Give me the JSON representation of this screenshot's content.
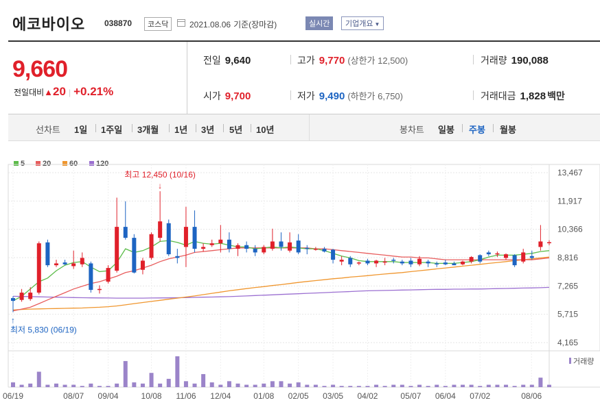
{
  "header": {
    "name": "에코바이오",
    "code": "038870",
    "market": "코스닥",
    "date": "2021.08.06",
    "basis": "기준(장마감)",
    "realtime_label": "실시간",
    "info_label": "기업개요"
  },
  "quote": {
    "price": "9,660",
    "change_label": "전일대비",
    "change_value": "20",
    "change_pct": "+0.21%",
    "prev_label": "전일",
    "prev_value": "9,640",
    "high_label": "고가",
    "high_value": "9,770",
    "upper_limit": "(상한가 12,500)",
    "volume_label": "거래량",
    "volume_value": "190,088",
    "open_label": "시가",
    "open_value": "9,700",
    "low_label": "저가",
    "low_value": "9,490",
    "lower_limit": "(하한가 6,750)",
    "amount_label": "거래대금",
    "amount_value": "1,828",
    "amount_unit": "백만"
  },
  "periods": {
    "line_label": "선차트",
    "line_items": [
      "1일",
      "1주일",
      "3개월",
      "1년",
      "3년",
      "5년",
      "10년"
    ],
    "candle_label": "봉차트",
    "candle_items": [
      "일봉",
      "주봉",
      "월봉"
    ],
    "candle_active": "주봉"
  },
  "colors": {
    "up": "#e0202a",
    "down": "#1d64c2",
    "ma5": "#5cbc4a",
    "ma20": "#e85c5c",
    "ma60": "#f0962e",
    "ma120": "#9b6fd1",
    "volume": "#9b84c9"
  },
  "chart_data": {
    "type": "candlestick",
    "interval": "weekly",
    "legend": [
      "5",
      "20",
      "60",
      "120"
    ],
    "y_ticks": [
      "13,467",
      "11,917",
      "10,366",
      "8,816",
      "7,265",
      "5,715",
      "4,165"
    ],
    "ylim": [
      4165,
      13467
    ],
    "x_ticks": [
      "06/19",
      "08/07",
      "09/04",
      "10/08",
      "11/06",
      "12/04",
      "01/08",
      "02/05",
      "03/05",
      "04/02",
      "05/07",
      "06/04",
      "07/02",
      "08/06"
    ],
    "annotations": {
      "high": "최고 12,450 (10/16)",
      "low": "최저 5,830 (06/19)"
    },
    "volume_label": "거래량",
    "candles": [
      {
        "o": 6600,
        "h": 6700,
        "l": 5830,
        "c": 6450
      },
      {
        "o": 6500,
        "h": 7100,
        "l": 6400,
        "c": 6900
      },
      {
        "o": 6550,
        "h": 7200,
        "l": 6450,
        "c": 6900
      },
      {
        "o": 6900,
        "h": 9700,
        "l": 6800,
        "c": 9600
      },
      {
        "o": 9650,
        "h": 9800,
        "l": 8300,
        "c": 8400
      },
      {
        "o": 8400,
        "h": 8700,
        "l": 8300,
        "c": 8500
      },
      {
        "o": 8550,
        "h": 8700,
        "l": 8400,
        "c": 8450
      },
      {
        "o": 8350,
        "h": 9200,
        "l": 8200,
        "c": 8500
      },
      {
        "o": 8450,
        "h": 9100,
        "l": 8300,
        "c": 8800
      },
      {
        "o": 8500,
        "h": 8600,
        "l": 6900,
        "c": 7050
      },
      {
        "o": 7050,
        "h": 7300,
        "l": 6850,
        "c": 7100
      },
      {
        "o": 7500,
        "h": 8400,
        "l": 7400,
        "c": 8250
      },
      {
        "o": 8100,
        "h": 12100,
        "l": 8000,
        "c": 10500
      },
      {
        "o": 10500,
        "h": 11900,
        "l": 9800,
        "c": 9900
      },
      {
        "o": 9900,
        "h": 10100,
        "l": 7950,
        "c": 8000
      },
      {
        "o": 8150,
        "h": 8800,
        "l": 7900,
        "c": 8650
      },
      {
        "o": 8800,
        "h": 10200,
        "l": 8700,
        "c": 10100
      },
      {
        "o": 9900,
        "h": 12450,
        "l": 9700,
        "c": 10800
      },
      {
        "o": 10700,
        "h": 10900,
        "l": 8900,
        "c": 9000
      },
      {
        "o": 8900,
        "h": 9300,
        "l": 8500,
        "c": 8800
      },
      {
        "o": 9400,
        "h": 11600,
        "l": 8300,
        "c": 10500
      },
      {
        "o": 10500,
        "h": 11400,
        "l": 9100,
        "c": 9300
      },
      {
        "o": 9300,
        "h": 9600,
        "l": 9150,
        "c": 9400
      },
      {
        "o": 9500,
        "h": 9800,
        "l": 9400,
        "c": 9600
      },
      {
        "o": 9600,
        "h": 10600,
        "l": 9100,
        "c": 9800
      },
      {
        "o": 9800,
        "h": 10200,
        "l": 9100,
        "c": 9300
      },
      {
        "o": 9300,
        "h": 9600,
        "l": 8900,
        "c": 9500
      },
      {
        "o": 9500,
        "h": 9700,
        "l": 9100,
        "c": 9300
      },
      {
        "o": 9300,
        "h": 9500,
        "l": 8900,
        "c": 9100
      },
      {
        "o": 9100,
        "h": 9500,
        "l": 9000,
        "c": 9400
      },
      {
        "o": 9300,
        "h": 10400,
        "l": 9200,
        "c": 9700
      },
      {
        "o": 9700,
        "h": 10200,
        "l": 9200,
        "c": 9400
      },
      {
        "o": 9200,
        "h": 10200,
        "l": 9100,
        "c": 9650
      },
      {
        "o": 9750,
        "h": 10100,
        "l": 9000,
        "c": 9100
      },
      {
        "o": 9350,
        "h": 9500,
        "l": 9000,
        "c": 9300
      },
      {
        "o": 9300,
        "h": 9400,
        "l": 9200,
        "c": 9300
      },
      {
        "o": 9300,
        "h": 9400,
        "l": 9100,
        "c": 9150
      },
      {
        "o": 9250,
        "h": 9300,
        "l": 8500,
        "c": 8700
      },
      {
        "o": 8600,
        "h": 8900,
        "l": 8400,
        "c": 8700
      },
      {
        "o": 8800,
        "h": 8900,
        "l": 8300,
        "c": 8450
      },
      {
        "o": 8500,
        "h": 8600,
        "l": 8400,
        "c": 8550
      },
      {
        "o": 8650,
        "h": 8750,
        "l": 8400,
        "c": 8500
      },
      {
        "o": 8500,
        "h": 8700,
        "l": 8300,
        "c": 8650
      },
      {
        "o": 8550,
        "h": 8800,
        "l": 8400,
        "c": 8600
      },
      {
        "o": 8700,
        "h": 8800,
        "l": 8500,
        "c": 8650
      },
      {
        "o": 8600,
        "h": 8700,
        "l": 8400,
        "c": 8500
      },
      {
        "o": 8650,
        "h": 8800,
        "l": 8300,
        "c": 8450
      },
      {
        "o": 8450,
        "h": 8900,
        "l": 8350,
        "c": 8750
      },
      {
        "o": 8600,
        "h": 8700,
        "l": 8300,
        "c": 8500
      },
      {
        "o": 8500,
        "h": 8600,
        "l": 8300,
        "c": 8450
      },
      {
        "o": 8550,
        "h": 8700,
        "l": 8400,
        "c": 8450
      },
      {
        "o": 8500,
        "h": 8600,
        "l": 8400,
        "c": 8400
      },
      {
        "o": 8450,
        "h": 8650,
        "l": 8400,
        "c": 8600
      },
      {
        "o": 8600,
        "h": 8900,
        "l": 8500,
        "c": 8850
      },
      {
        "o": 8950,
        "h": 9000,
        "l": 8500,
        "c": 8600
      },
      {
        "o": 9100,
        "h": 9200,
        "l": 8900,
        "c": 9000
      },
      {
        "o": 9000,
        "h": 9150,
        "l": 8850,
        "c": 9050
      },
      {
        "o": 8800,
        "h": 9050,
        "l": 8700,
        "c": 9000
      },
      {
        "o": 8950,
        "h": 9000,
        "l": 8300,
        "c": 8400
      },
      {
        "o": 8600,
        "h": 9300,
        "l": 8500,
        "c": 9100
      },
      {
        "o": 8900,
        "h": 9200,
        "l": 8700,
        "c": 8800
      },
      {
        "o": 9400,
        "h": 10600,
        "l": 9200,
        "c": 9700
      },
      {
        "o": 9640,
        "h": 9770,
        "l": 9490,
        "c": 9660
      }
    ],
    "ma5": [
      6450,
      6700,
      7100,
      7500,
      7700,
      8100,
      8400,
      8550,
      8600,
      8300,
      8050,
      8100,
      8550,
      9300,
      9100,
      9200,
      9400,
      9700,
      9750,
      9650,
      9500,
      9700,
      9600,
      9550,
      9600,
      9500,
      9400,
      9400,
      9300,
      9350,
      9400,
      9350,
      9400,
      9350,
      9300,
      9300,
      9200,
      9050,
      8900,
      8800,
      8650,
      8600,
      8600,
      8600,
      8600,
      8550,
      8550,
      8550,
      8550,
      8500,
      8500,
      8500,
      8550,
      8600,
      8700,
      8850,
      8950,
      8950,
      8950,
      9000,
      9050,
      9150,
      9200
    ],
    "ma20": [
      5900,
      6000,
      6100,
      6300,
      6500,
      6700,
      6900,
      7100,
      7250,
      7400,
      7500,
      7650,
      7800,
      8000,
      8100,
      8250,
      8400,
      8600,
      8750,
      8850,
      8950,
      9100,
      9150,
      9200,
      9250,
      9300,
      9350,
      9350,
      9350,
      9350,
      9350,
      9350,
      9350,
      9350,
      9350,
      9300,
      9300,
      9250,
      9200,
      9150,
      9100,
      9050,
      9000,
      8950,
      8900,
      8850,
      8850,
      8800,
      8800,
      8750,
      8700,
      8700,
      8700,
      8700,
      8700,
      8700,
      8700,
      8700,
      8700,
      8700,
      8700,
      8750,
      8800
    ],
    "ma60": [
      5950,
      5980,
      6000,
      6010,
      6020,
      6030,
      6040,
      6050,
      6060,
      6080,
      6100,
      6130,
      6170,
      6230,
      6300,
      6360,
      6420,
      6480,
      6540,
      6600,
      6660,
      6720,
      6790,
      6860,
      6930,
      7000,
      7060,
      7120,
      7180,
      7230,
      7290,
      7340,
      7400,
      7460,
      7510,
      7560,
      7610,
      7660,
      7700,
      7750,
      7790,
      7830,
      7880,
      7920,
      7960,
      8000,
      8050,
      8100,
      8150,
      8200,
      8250,
      8300,
      8350,
      8400,
      8450,
      8500,
      8550,
      8600,
      8650,
      8700,
      8750,
      8800,
      8850
    ],
    "ma120": [
      6700,
      6690,
      6680,
      6670,
      6660,
      6650,
      6640,
      6630,
      6620,
      6615,
      6610,
      6605,
      6600,
      6600,
      6600,
      6600,
      6605,
      6610,
      6615,
      6620,
      6630,
      6640,
      6650,
      6660,
      6670,
      6680,
      6700,
      6720,
      6740,
      6760,
      6780,
      6800,
      6820,
      6840,
      6860,
      6880,
      6900,
      6920,
      6940,
      6960,
      6980,
      7000,
      7010,
      7020,
      7030,
      7040,
      7050,
      7060,
      7070,
      7080,
      7080,
      7090,
      7090,
      7100,
      7100,
      7110,
      7120,
      7130,
      7140,
      7150,
      7160,
      7170,
      7190
    ],
    "volumes": [
      4,
      2,
      3,
      13,
      2,
      3,
      2,
      2,
      1,
      3,
      1,
      1,
      3,
      22,
      4,
      3,
      12,
      3,
      7,
      26,
      5,
      3,
      11,
      4,
      2,
      5,
      3,
      2,
      2,
      3,
      5,
      5,
      3,
      4,
      2,
      2,
      1,
      2,
      1,
      1,
      1,
      1,
      2,
      1,
      2,
      2,
      1,
      2,
      1,
      2,
      1,
      2,
      2,
      2,
      1,
      2,
      2,
      2,
      1,
      2,
      2,
      8,
      2
    ]
  }
}
